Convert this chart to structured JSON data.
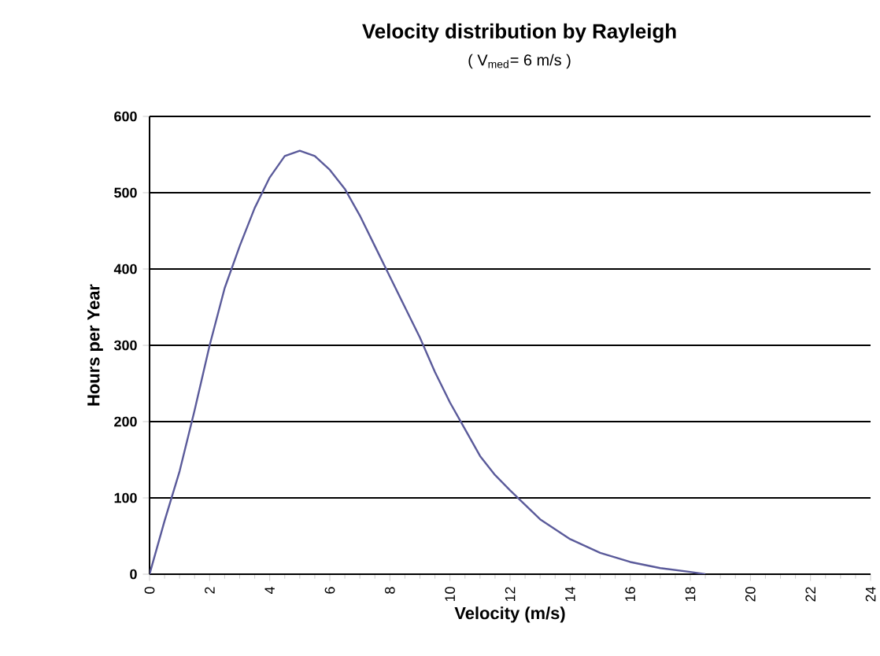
{
  "chart_data": {
    "type": "line",
    "title": "Velocity distribution by Rayleigh",
    "subtitle": "( V$_{med}$= 6 m/s )",
    "xlabel": "Velocity (m/s)",
    "ylabel": "Hours per Year",
    "x": [
      0,
      0.5,
      1,
      1.5,
      2,
      2.5,
      3,
      3.5,
      4,
      4.5,
      5,
      5.5,
      6,
      6.5,
      7,
      7.5,
      8,
      8.5,
      9,
      9.5,
      10,
      10.5,
      11,
      11.5,
      12,
      13,
      14,
      15,
      16,
      17,
      18,
      18.5
    ],
    "series": [
      {
        "color": "#5a5a9a",
        "values": [
          0,
          70,
          135,
          215,
          300,
          375,
          430,
          480,
          520,
          548,
          555,
          548,
          530,
          505,
          470,
          430,
          390,
          350,
          310,
          265,
          225,
          190,
          155,
          130,
          110,
          72,
          46,
          28,
          16,
          8,
          3,
          0
        ]
      }
    ],
    "xlim": [
      0,
      24
    ],
    "xticks": [
      0,
      2,
      4,
      6,
      8,
      10,
      12,
      14,
      16,
      18,
      20,
      22,
      24
    ],
    "ylim": [
      0,
      600
    ],
    "yticks": [
      0,
      100,
      200,
      300,
      400,
      500,
      600
    ],
    "grid": "y",
    "marker": "none",
    "line_style": "solid"
  }
}
